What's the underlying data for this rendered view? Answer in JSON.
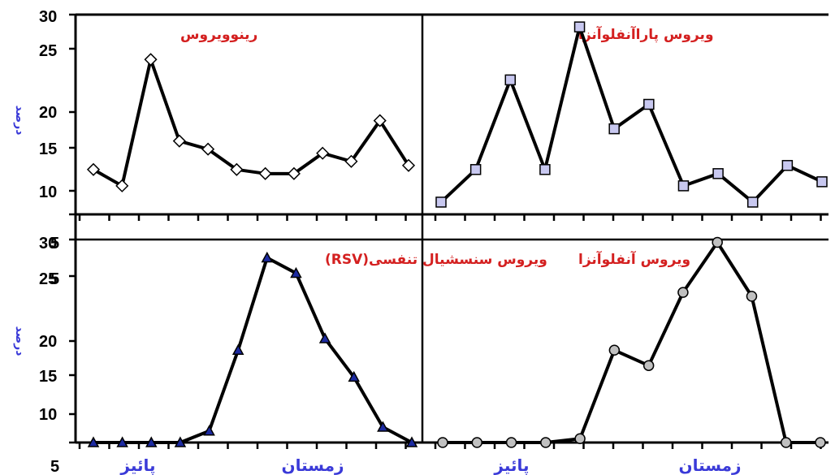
{
  "page": {
    "background": "#ffffff"
  },
  "colors": {
    "line": "#000000",
    "title": "#d42020",
    "axis_label": "#3a3ad8"
  },
  "top_row": {
    "ylabel": "درصد",
    "yticks": [
      10,
      15,
      20,
      25,
      30
    ]
  },
  "bottom_row": {
    "ylabel": "درصد",
    "yticks": [
      "5",
      "10",
      "15",
      "20",
      "25",
      "30"
    ]
  },
  "x_categories": [
    "پائیز",
    "زمستان",
    "پائیز",
    "زمستان"
  ],
  "chart_data": [
    {
      "type": "line",
      "title": "رینوویروس",
      "marker": "diamond",
      "marker_fill": "#ffffff",
      "ylim": [
        5,
        30
      ],
      "x": [
        1,
        2,
        3,
        4,
        5,
        6,
        7,
        8,
        9,
        10,
        11,
        12
      ],
      "values": [
        10.5,
        8.5,
        24,
        14,
        13,
        10.5,
        10,
        10,
        12.5,
        11.5,
        16.5,
        11
      ]
    },
    {
      "type": "line",
      "title": "ویروس پاراآنفلوآنزا",
      "marker": "square",
      "marker_fill": "#c8c8f0",
      "ylim": [
        5,
        30
      ],
      "x": [
        1,
        2,
        3,
        4,
        5,
        6,
        7,
        8,
        9,
        10,
        11,
        12
      ],
      "values": [
        6.5,
        10.5,
        21.5,
        10.5,
        28,
        15.5,
        18.5,
        8.5,
        10,
        6.5,
        11,
        9
      ]
    },
    {
      "type": "line",
      "title": "ویروس سنسشیال تنفسی(RSV)",
      "marker": "triangle",
      "marker_fill": "#1c2aa0",
      "ylim": [
        5,
        30
      ],
      "x": [
        1,
        2,
        3,
        4,
        5,
        6,
        7,
        8,
        9,
        10,
        11,
        12
      ],
      "values": [
        5,
        5,
        5,
        5,
        6.5,
        17,
        29,
        27,
        18.5,
        13.5,
        7,
        5
      ]
    },
    {
      "type": "line",
      "title": "ویروس آنفلوآنزا",
      "marker": "circle",
      "marker_fill": "#c0c0c0",
      "ylim": [
        5,
        30
      ],
      "x": [
        1,
        2,
        3,
        4,
        5,
        6,
        7,
        8,
        9,
        10,
        11,
        12
      ],
      "values": [
        5,
        5,
        5,
        5,
        5.5,
        17,
        15,
        24.5,
        31,
        24,
        5,
        5
      ]
    }
  ]
}
